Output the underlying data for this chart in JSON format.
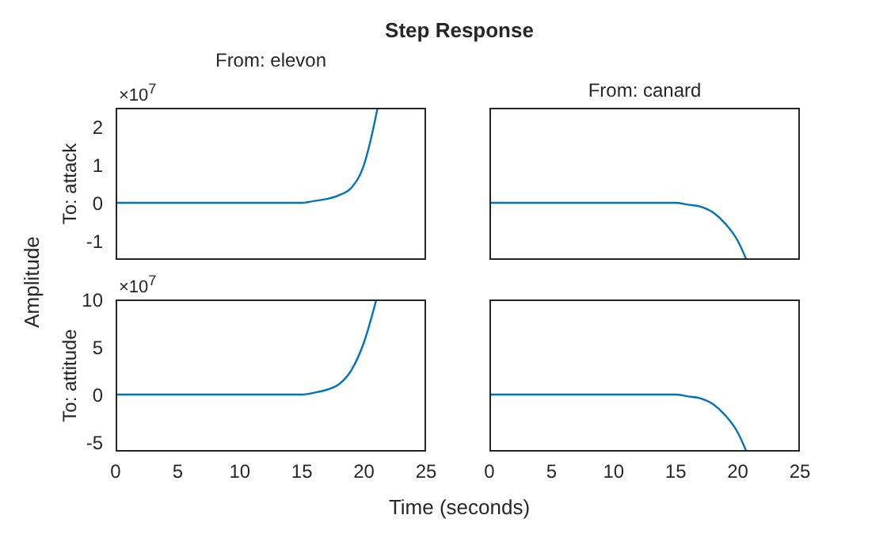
{
  "chart_data": [
    {
      "type": "line",
      "title": "Step Response",
      "subtitle": "From: elevon",
      "ylabel": "To: attack",
      "annotations": [
        "×10$^{7}$"
      ],
      "xlim": [
        0,
        25
      ],
      "ylim": [
        -1.5,
        2.5
      ],
      "xticks": [
        0,
        5,
        10,
        15,
        20,
        25
      ],
      "yticks": [
        -1,
        0,
        1,
        2
      ],
      "tick_labels": "y",
      "legend": false,
      "grid": false,
      "marker": "none",
      "series": [
        {
          "color": "#0072bd",
          "x": [
            0,
            15,
            16,
            17,
            18,
            19,
            20,
            20.5,
            21.1
          ],
          "values": [
            0,
            0,
            0.05,
            0.1,
            0.2,
            0.4,
            1.0,
            1.6,
            2.5
          ]
        }
      ]
    },
    {
      "type": "line",
      "subtitle": "From: canard",
      "xlim": [
        0,
        25
      ],
      "ylim": [
        -1.5,
        2.5
      ],
      "xticks": [
        0,
        5,
        10,
        15,
        20,
        25
      ],
      "yticks": [
        -1,
        0,
        1,
        2
      ],
      "tick_labels": false,
      "legend": false,
      "grid": false,
      "marker": "none",
      "series": [
        {
          "color": "#0072bd",
          "x": [
            0,
            15,
            16,
            17,
            18,
            19,
            20,
            20.7
          ],
          "values": [
            0,
            0,
            -0.05,
            -0.1,
            -0.25,
            -0.55,
            -1.0,
            -1.5
          ]
        }
      ]
    },
    {
      "type": "line",
      "xlabel": "Time (seconds)",
      "ylabel": "To: attitude",
      "annotations": [
        "×10$^{7}$",
        "Amplitude"
      ],
      "xlim": [
        0,
        25
      ],
      "ylim": [
        -6,
        10
      ],
      "xticks": [
        0,
        5,
        10,
        15,
        20,
        25
      ],
      "yticks": [
        -5,
        0,
        5,
        10
      ],
      "legend": false,
      "grid": false,
      "marker": "none",
      "series": [
        {
          "color": "#0072bd",
          "x": [
            0,
            15,
            16,
            17,
            18,
            19,
            20,
            21
          ],
          "values": [
            0,
            0,
            0.2,
            0.5,
            1.1,
            2.6,
            5.5,
            10
          ]
        }
      ]
    },
    {
      "type": "line",
      "xlim": [
        0,
        25
      ],
      "ylim": [
        -6,
        10
      ],
      "xticks": [
        0,
        5,
        10,
        15,
        20,
        25
      ],
      "yticks": [
        -5,
        0,
        5,
        10
      ],
      "tick_labels": "x",
      "legend": false,
      "grid": false,
      "marker": "none",
      "series": [
        {
          "color": "#0072bd",
          "x": [
            0,
            15,
            16,
            17,
            18,
            19,
            20,
            20.7
          ],
          "values": [
            0,
            0,
            -0.2,
            -0.4,
            -1.0,
            -2.2,
            -4.0,
            -6
          ]
        }
      ]
    }
  ]
}
